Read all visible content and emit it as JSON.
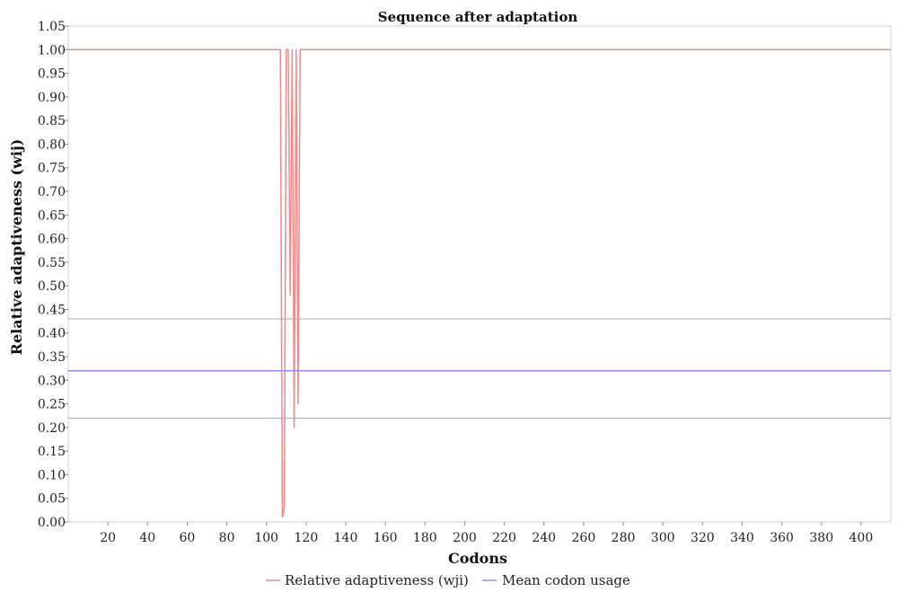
{
  "chart_data": {
    "type": "line",
    "title": "Sequence after adaptation",
    "xlabel": "Codons",
    "ylabel": "Relative adaptiveness (wij)",
    "xlim": [
      0,
      415
    ],
    "ylim": [
      0,
      1.05
    ],
    "xticks": [
      "20",
      "40",
      "60",
      "80",
      "100",
      "120",
      "140",
      "160",
      "180",
      "200",
      "220",
      "240",
      "260",
      "280",
      "300",
      "320",
      "340",
      "360",
      "380",
      "400"
    ],
    "yticks": [
      "0.00",
      "0.05",
      "0.10",
      "0.15",
      "0.20",
      "0.25",
      "0.30",
      "0.35",
      "0.40",
      "0.45",
      "0.50",
      "0.55",
      "0.60",
      "0.65",
      "0.70",
      "0.75",
      "0.80",
      "0.85",
      "0.90",
      "0.95",
      "1.00",
      "1.05"
    ],
    "grid": false,
    "legend_position": "bottom",
    "series": [
      {
        "name": "Relative adaptiveness (wji)",
        "color": "#f08a8a",
        "x": [
          0,
          107,
          108,
          109,
          110,
          111,
          112,
          113,
          114,
          115,
          116,
          117,
          118,
          119,
          415
        ],
        "y": [
          1.0,
          1.0,
          0.01,
          0.03,
          1.0,
          1.0,
          0.48,
          1.0,
          0.2,
          1.0,
          0.25,
          1.0,
          1.0,
          1.0,
          1.0
        ]
      },
      {
        "name": "Mean codon usage",
        "color": "#8e8ef0",
        "x": [
          0,
          415
        ],
        "y": [
          0.32,
          0.32
        ]
      }
    ],
    "reference_lines": [
      {
        "y": 0.43,
        "color": "#aaaaaa"
      },
      {
        "y": 0.22,
        "color": "#aaaaaa"
      }
    ]
  },
  "legend": {
    "items": [
      {
        "label": "Relative adaptiveness (wji)",
        "color": "#f08a8a"
      },
      {
        "label": "Mean codon usage",
        "color": "#8e8ef0"
      }
    ]
  }
}
